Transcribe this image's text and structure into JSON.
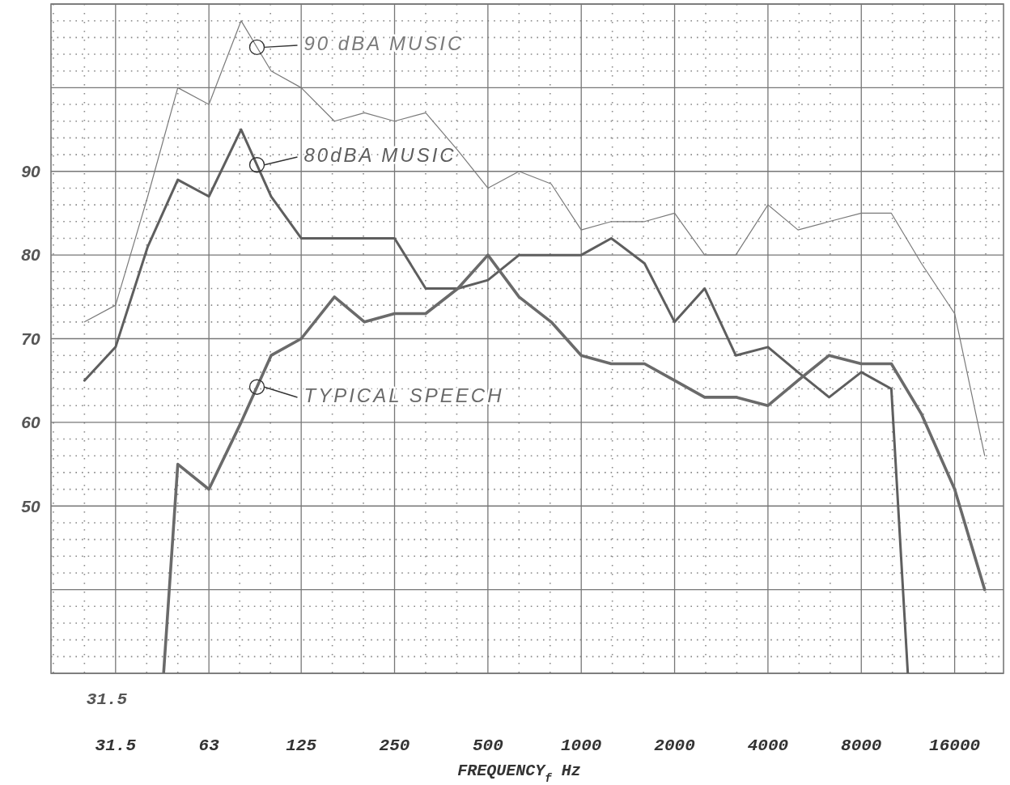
{
  "chart_data": {
    "type": "line",
    "xlabel": "FREQUENCY$_{f}$ Hz",
    "log": "x",
    "xlim": [
      19.5,
      23000
    ],
    "xticks": [
      31.5,
      63,
      125,
      250,
      500,
      1000,
      2000,
      4000,
      8000,
      16000
    ],
    "ylim": [
      30,
      110
    ],
    "yticks": [
      {
        "value": 30,
        "label": null
      },
      {
        "value": 40,
        "label": null
      },
      50,
      60,
      70,
      80,
      90,
      {
        "value": 100,
        "label": null
      },
      {
        "value": 110,
        "label": null
      }
    ],
    "grid": true,
    "legend": false,
    "marker": "none",
    "line_style": "solid",
    "annotations": [
      "31.5"
    ],
    "series": [
      {
        "name": "90 dBA MUSIC",
        "color": "#7a7a7a",
        "x": [
          25,
          31.5,
          40,
          50,
          63,
          80,
          100,
          125,
          160,
          200,
          250,
          315,
          400,
          500,
          630,
          800,
          1000,
          1250,
          1600,
          2000,
          2500,
          3150,
          4000,
          5000,
          6300,
          8000,
          10000,
          12500,
          16000,
          20000
        ],
        "values": [
          72,
          74,
          87,
          100,
          98,
          108,
          102,
          100,
          96,
          97,
          96,
          97,
          92.5,
          88,
          90,
          88.5,
          83,
          84,
          84,
          85,
          80,
          80,
          86,
          83,
          84,
          85,
          85,
          79,
          73,
          56
        ]
      },
      {
        "name": "80dBA MUSIC",
        "color": "#5e5e5e",
        "x": [
          25,
          31.5,
          40,
          50,
          63,
          80,
          100,
          125,
          160,
          200,
          250,
          315,
          400,
          500,
          630,
          800,
          1000,
          1250,
          1600,
          2000,
          2500,
          3150,
          4000,
          5000,
          6300,
          8000,
          10000,
          11300
        ],
        "values": [
          65,
          69,
          81,
          89,
          87,
          95,
          87,
          82,
          82,
          82,
          82,
          76,
          76,
          77,
          80,
          80,
          80,
          82,
          79,
          72,
          76,
          68,
          69,
          66,
          63,
          66,
          64,
          30
        ]
      },
      {
        "name": "TYPICAL SPEECH",
        "color": "#6a6a6a",
        "x": [
          45,
          50,
          63,
          80,
          100,
          125,
          160,
          200,
          250,
          315,
          400,
          500,
          630,
          800,
          1000,
          1250,
          1600,
          2000,
          2500,
          3150,
          4000,
          5000,
          6300,
          8000,
          10000,
          12500,
          16000,
          20000
        ],
        "values": [
          30,
          55,
          52,
          60,
          68,
          70,
          75,
          72,
          73,
          73,
          76,
          80,
          75,
          72,
          68,
          67,
          67,
          65,
          63,
          63,
          62,
          65,
          68,
          67,
          67,
          61,
          52,
          40
        ]
      }
    ]
  }
}
